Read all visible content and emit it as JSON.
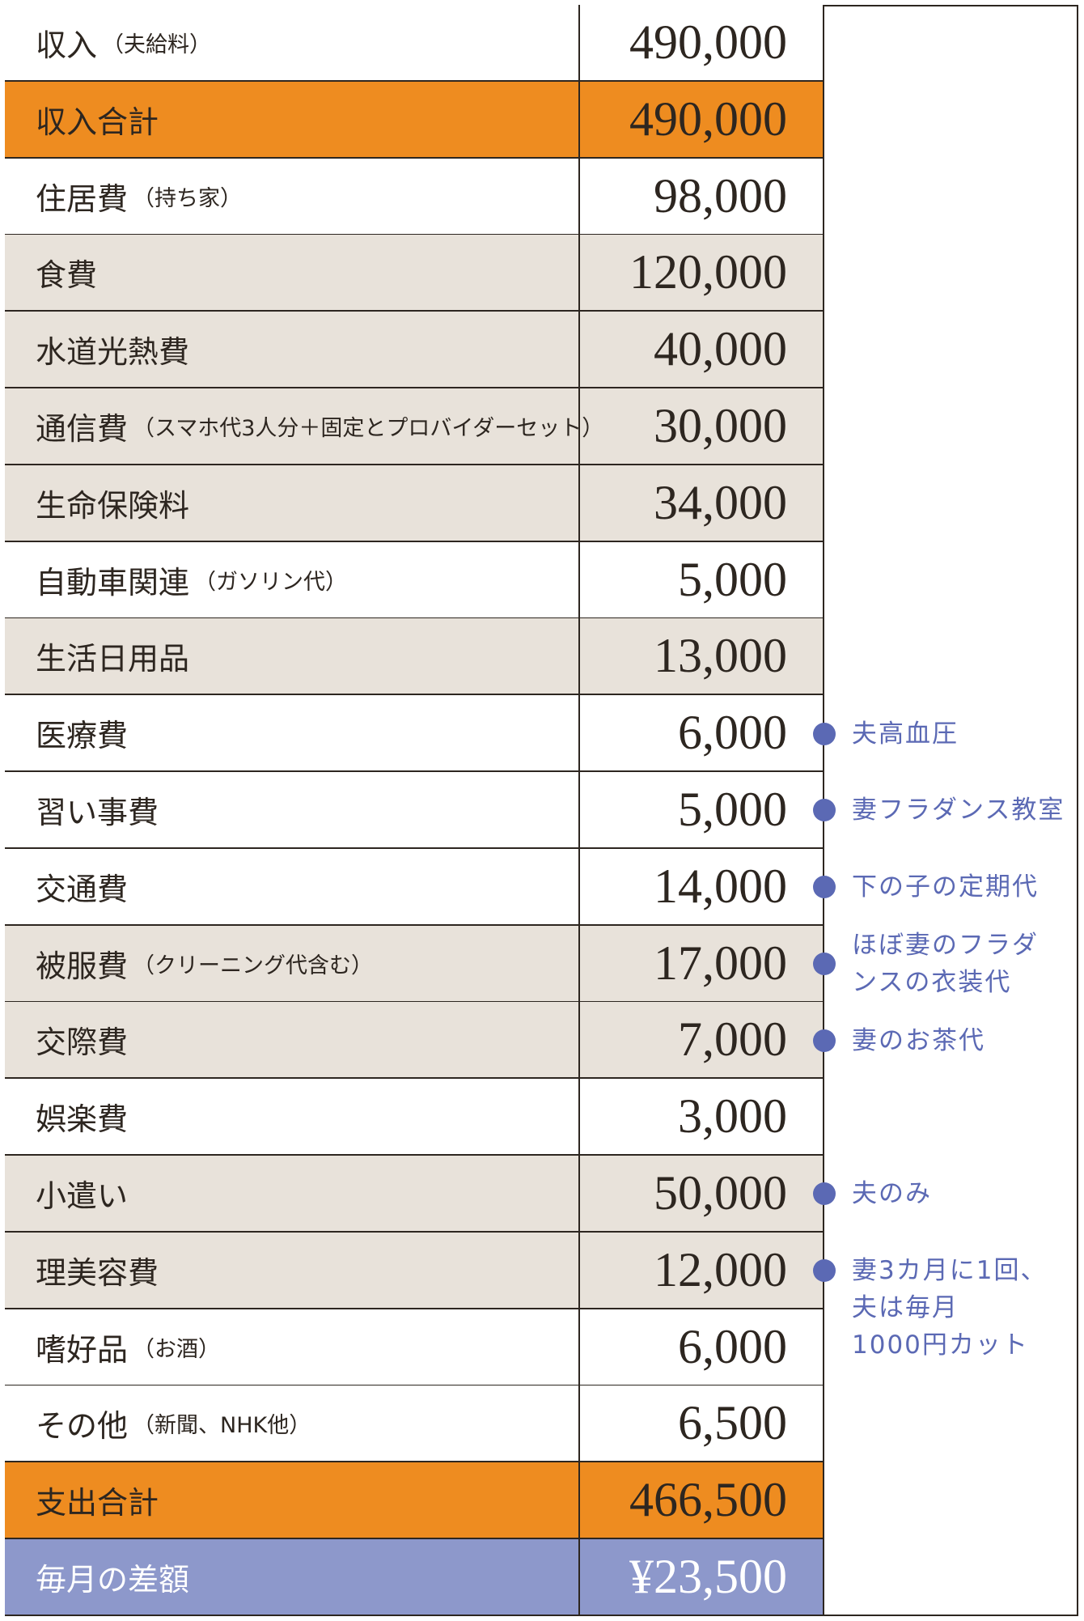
{
  "colors": {
    "orange": "#ee8c20",
    "beige": "#e8e2da",
    "blue": "#8d98cb",
    "note": "#5b69b4"
  },
  "rows": [
    {
      "label": "収入",
      "sub": "（夫給料）",
      "value": "490,000",
      "style": "white"
    },
    {
      "label": "収入合計",
      "sub": "",
      "value": "490,000",
      "style": "orange"
    },
    {
      "label": "住居費",
      "sub": "（持ち家）",
      "value": "98,000",
      "style": "white"
    },
    {
      "label": "食費",
      "sub": "",
      "value": "120,000",
      "style": "beige"
    },
    {
      "label": "水道光熱費",
      "sub": "",
      "value": "40,000",
      "style": "beige"
    },
    {
      "label": "通信費",
      "sub": "（スマホ代3人分＋固定とプロバイダーセット）",
      "value": "30,000",
      "style": "beige"
    },
    {
      "label": "生命保険料",
      "sub": "",
      "value": "34,000",
      "style": "beige"
    },
    {
      "label": "自動車関連",
      "sub": "（ガソリン代）",
      "value": "5,000",
      "style": "white"
    },
    {
      "label": "生活日用品",
      "sub": "",
      "value": "13,000",
      "style": "beige"
    },
    {
      "label": "医療費",
      "sub": "",
      "value": "6,000",
      "style": "white",
      "note": "夫高血圧"
    },
    {
      "label": "習い事費",
      "sub": "",
      "value": "5,000",
      "style": "white",
      "note": "妻フラダンス教室"
    },
    {
      "label": "交通費",
      "sub": "",
      "value": "14,000",
      "style": "white",
      "note": "下の子の定期代"
    },
    {
      "label": "被服費",
      "sub": "（クリーニング代含む）",
      "value": "17,000",
      "style": "beige",
      "note": "ほぼ妻のフラダ\nンスの衣装代"
    },
    {
      "label": "交際費",
      "sub": "",
      "value": "7,000",
      "style": "beige",
      "note": "妻のお茶代"
    },
    {
      "label": "娯楽費",
      "sub": "",
      "value": "3,000",
      "style": "white"
    },
    {
      "label": "小遣い",
      "sub": "",
      "value": "50,000",
      "style": "beige",
      "note": "夫のみ"
    },
    {
      "label": "理美容費",
      "sub": "",
      "value": "12,000",
      "style": "beige",
      "note": "妻3カ月に1回、\n夫は毎月\n1000円カット"
    },
    {
      "label": "嗜好品",
      "sub": "（お酒）",
      "value": "6,000",
      "style": "white"
    },
    {
      "label": "その他",
      "sub": "（新聞、NHK他）",
      "value": "6,500",
      "style": "white"
    },
    {
      "label": "支出合計",
      "sub": "",
      "value": "466,500",
      "style": "orange"
    },
    {
      "label": "毎月の差額",
      "sub": "",
      "value": "¥23,500",
      "style": "blue"
    }
  ]
}
